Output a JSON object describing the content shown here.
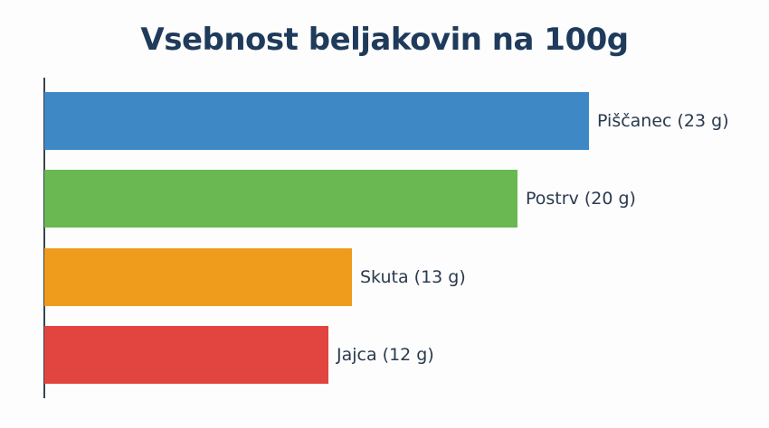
{
  "chart_data": {
    "type": "bar",
    "orientation": "horizontal",
    "title": "Vsebnost beljakovin na 100g",
    "xlabel": "",
    "ylabel": "",
    "unit": "g",
    "categories": [
      "Piščanec",
      "Postrv",
      "Skuta",
      "Jajca"
    ],
    "values": [
      23,
      20,
      13,
      12
    ],
    "labels": [
      "Piščanec (23 g)",
      "Postrv (20 g)",
      "Skuta (13 g)",
      "Jajca (12 g)"
    ],
    "colors": [
      "#3d88c5",
      "#6ab851",
      "#ef9b1b",
      "#e2443f"
    ],
    "grid": false,
    "legend": false,
    "xlim": [
      0,
      23
    ]
  },
  "title": "Vsebnost beljakovin na 100g",
  "bars": [
    {
      "label": "Piščanec (23 g)",
      "value": 23,
      "color": "#3d88c5"
    },
    {
      "label": "Postrv (20 g)",
      "value": 20,
      "color": "#6ab851"
    },
    {
      "label": "Skuta (13 g)",
      "value": 13,
      "color": "#ef9b1b"
    },
    {
      "label": "Jajca (12 g)",
      "value": 12,
      "color": "#e2443f"
    }
  ]
}
